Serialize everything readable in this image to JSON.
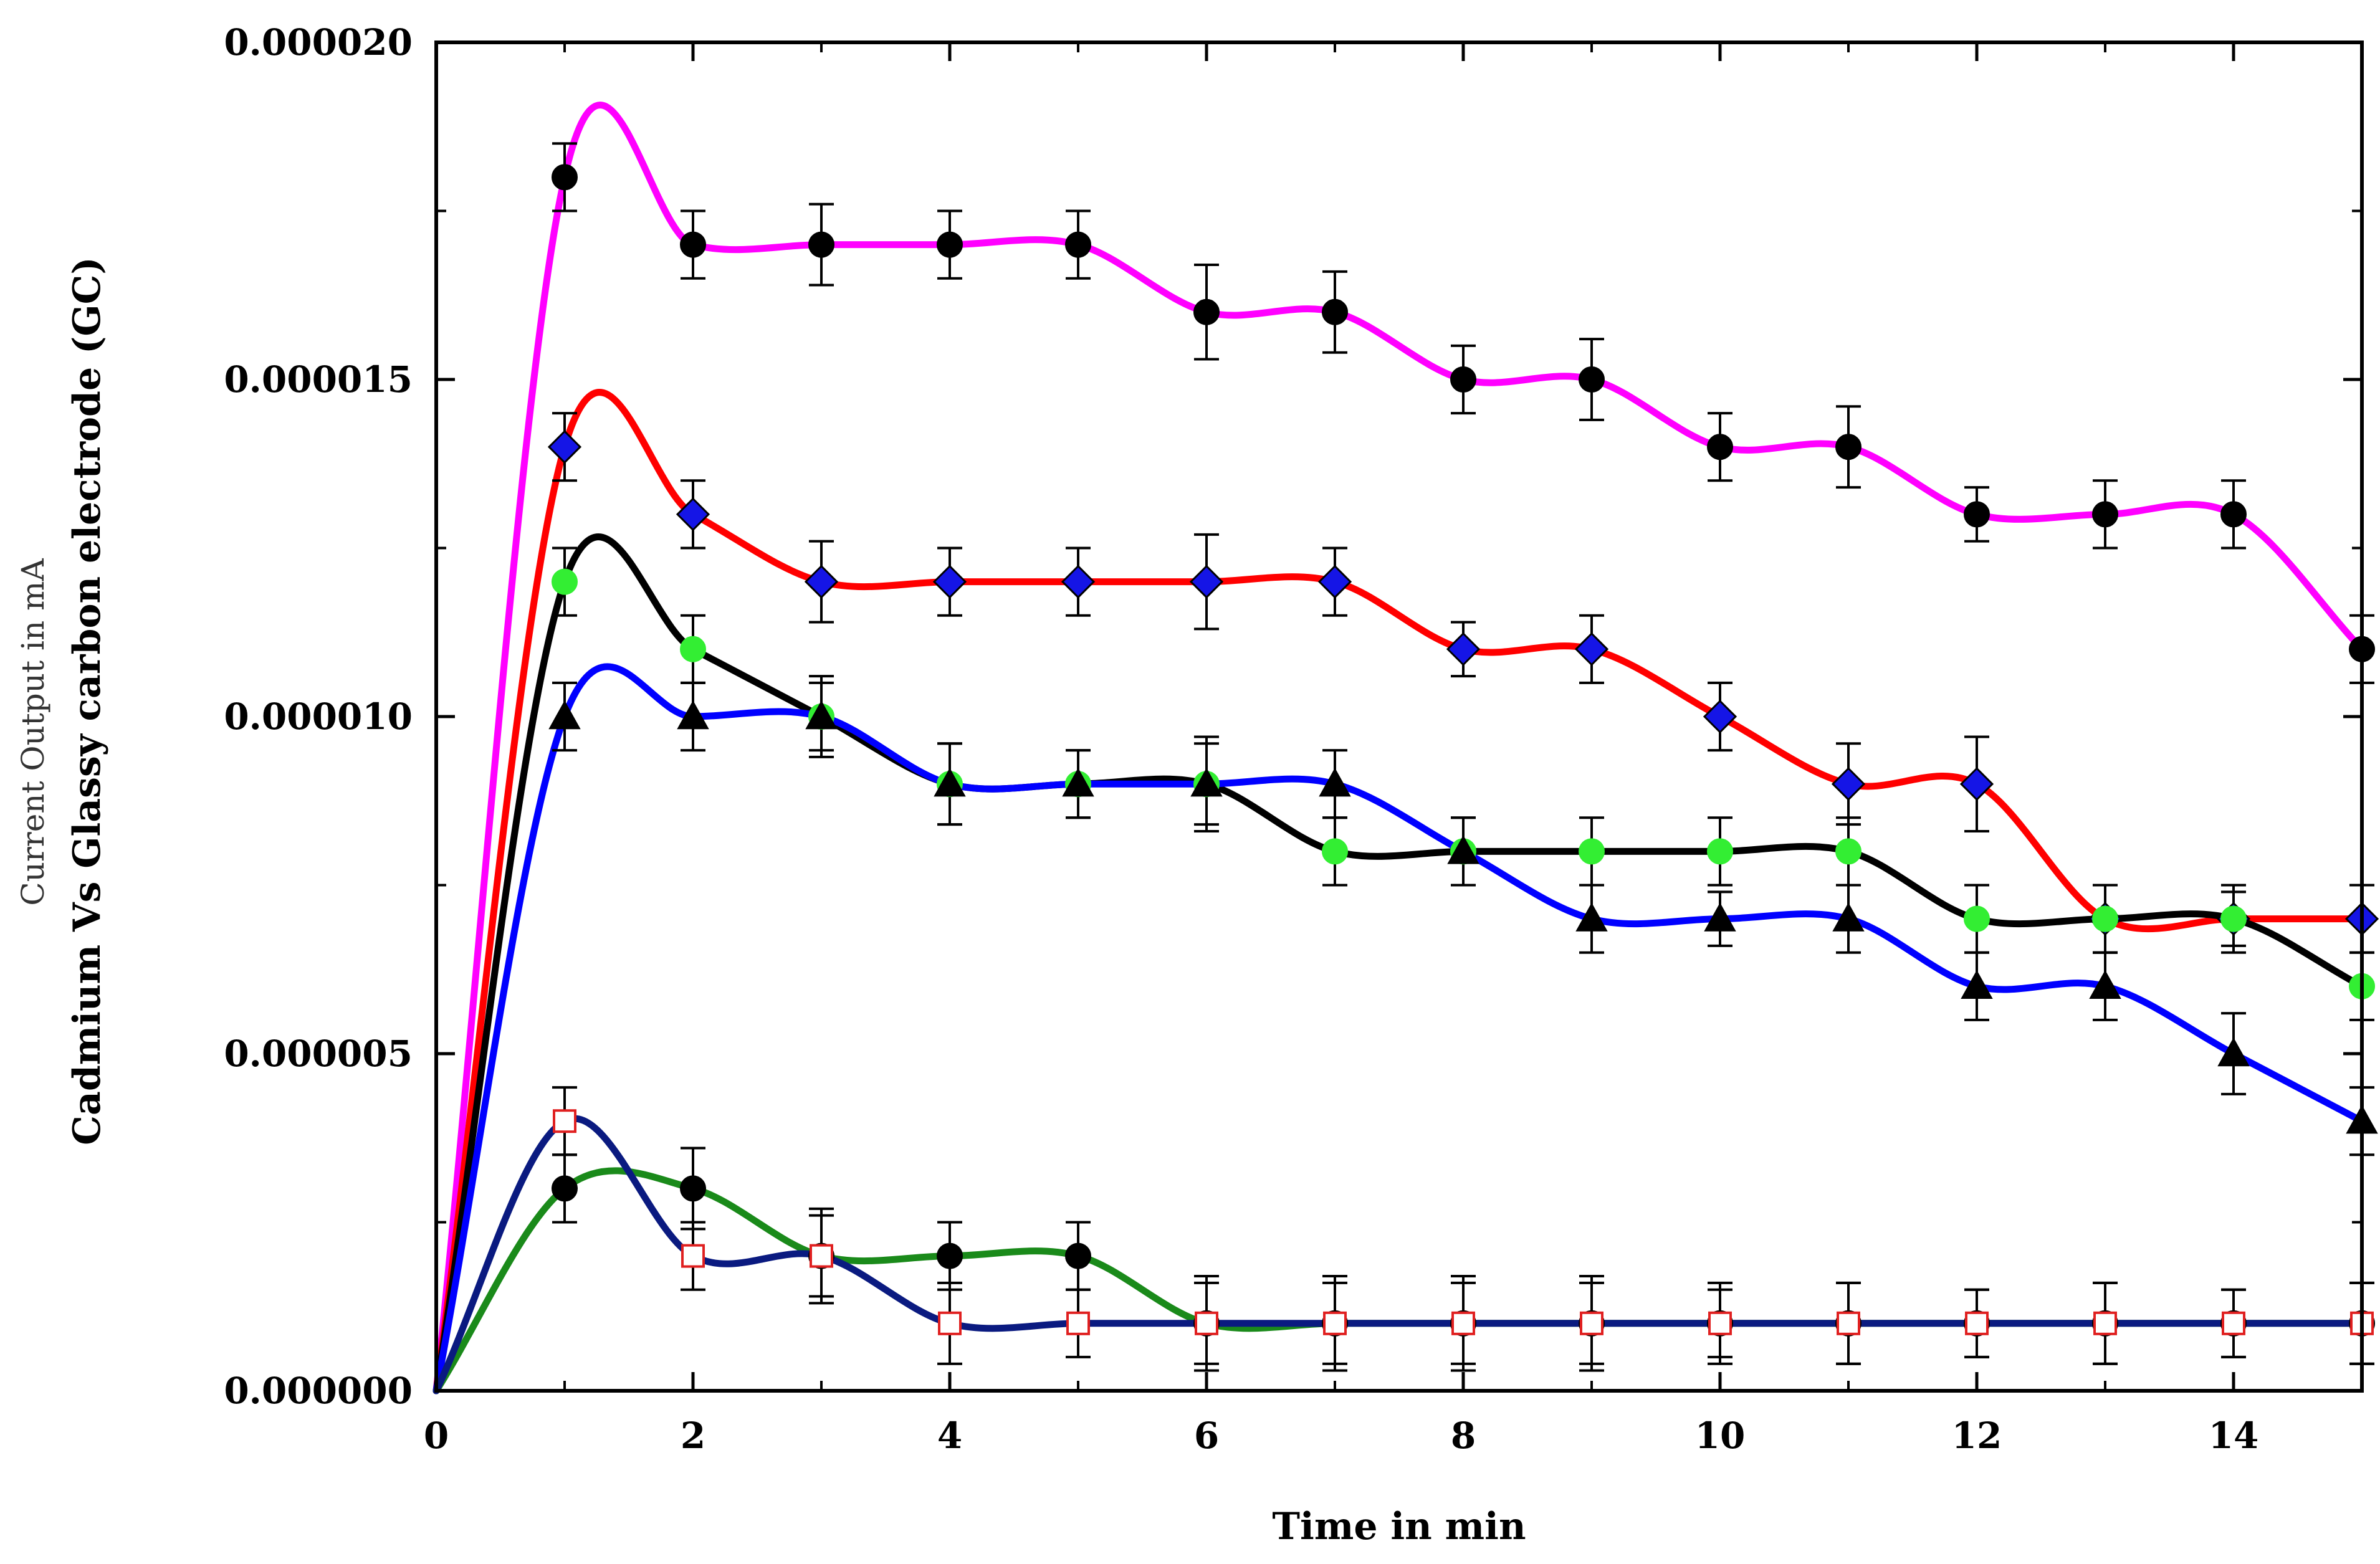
{
  "chart_data": {
    "type": "line",
    "xlabel": "Time in min",
    "ylabel_line1": "Current Output in mA",
    "ylabel_line2": "Cadmium Vs Glassy carbon electrode (GC)",
    "xlim": [
      0,
      15
    ],
    "ylim": [
      0,
      2e-05
    ],
    "x_ticks": [
      0,
      2,
      4,
      6,
      8,
      10,
      12,
      14
    ],
    "x_tick_labels": [
      "0",
      "2",
      "4",
      "6",
      "8",
      "10",
      "12",
      "14"
    ],
    "y_ticks": [
      0,
      5e-06,
      1e-05,
      1.5e-05,
      2e-05
    ],
    "y_tick_labels": [
      "0.000000",
      "0.000005",
      "0.000010",
      "0.000015",
      "0.000020"
    ],
    "grid": false,
    "legend": "none",
    "x": [
      0,
      1,
      2,
      3,
      4,
      5,
      6,
      7,
      8,
      9,
      10,
      11,
      12,
      13,
      14,
      15
    ],
    "series": [
      {
        "name": "magenta",
        "line_color": "#ff00ff",
        "marker": "circle",
        "marker_fill": "#000000",
        "marker_stroke": "#000000",
        "values": [
          0,
          1.8e-05,
          1.7e-05,
          1.7e-05,
          1.7e-05,
          1.7e-05,
          1.6e-05,
          1.6e-05,
          1.5e-05,
          1.5e-05,
          1.4e-05,
          1.4e-05,
          1.3e-05,
          1.3e-05,
          1.3e-05,
          1.1e-05
        ],
        "errors": [
          0,
          5e-07,
          5e-07,
          6e-07,
          5e-07,
          5e-07,
          7e-07,
          6e-07,
          5e-07,
          6e-07,
          5e-07,
          6e-07,
          4e-07,
          5e-07,
          5e-07,
          5e-07
        ]
      },
      {
        "name": "red",
        "line_color": "#ff0000",
        "marker": "diamond",
        "marker_fill": "#1515e6",
        "marker_stroke": "#000000",
        "values": [
          0,
          1.4e-05,
          1.3e-05,
          1.2e-05,
          1.2e-05,
          1.2e-05,
          1.2e-05,
          1.2e-05,
          1.1e-05,
          1.1e-05,
          1e-05,
          9e-06,
          9e-06,
          7e-06,
          7e-06,
          7e-06
        ],
        "errors": [
          0,
          5e-07,
          5e-07,
          6e-07,
          5e-07,
          5e-07,
          7e-07,
          5e-07,
          4e-07,
          5e-07,
          5e-07,
          6e-07,
          7e-07,
          5e-07,
          5e-07,
          5e-07
        ]
      },
      {
        "name": "black",
        "line_color": "#000000",
        "marker": "circle",
        "marker_fill": "#33ee33",
        "marker_stroke": "#33ee33",
        "values": [
          0,
          1.2e-05,
          1.1e-05,
          1e-05,
          9e-06,
          9e-06,
          9e-06,
          8e-06,
          8e-06,
          8e-06,
          8e-06,
          8e-06,
          7e-06,
          7e-06,
          7e-06,
          6e-06
        ],
        "errors": [
          0,
          5e-07,
          5e-07,
          6e-07,
          6e-07,
          5e-07,
          7e-07,
          5e-07,
          5e-07,
          5e-07,
          5e-07,
          5e-07,
          5e-07,
          5e-07,
          4e-07,
          5e-07
        ]
      },
      {
        "name": "blue",
        "line_color": "#0000ff",
        "marker": "triangle",
        "marker_fill": "#000000",
        "marker_stroke": "#000000",
        "values": [
          0,
          1e-05,
          1e-05,
          1e-05,
          9e-06,
          9e-06,
          9e-06,
          9e-06,
          8e-06,
          7e-06,
          7e-06,
          7e-06,
          6e-06,
          6e-06,
          5e-06,
          4e-06
        ],
        "errors": [
          0,
          5e-07,
          5e-07,
          5e-07,
          6e-07,
          5e-07,
          6e-07,
          5e-07,
          5e-07,
          5e-07,
          4e-07,
          5e-07,
          5e-07,
          5e-07,
          6e-07,
          5e-07
        ]
      },
      {
        "name": "green",
        "line_color": "#1a8a1a",
        "marker": "circle",
        "marker_fill": "#000000",
        "marker_stroke": "#000000",
        "values": [
          0,
          3e-06,
          3e-06,
          2e-06,
          2e-06,
          2e-06,
          1e-06,
          1e-06,
          1e-06,
          1e-06,
          1e-06,
          1e-06,
          1e-06,
          1e-06,
          1e-06,
          1e-06
        ],
        "errors": [
          0,
          5e-07,
          6e-07,
          7e-07,
          5e-07,
          5e-07,
          6e-07,
          6e-07,
          6e-07,
          6e-07,
          5e-07,
          6e-07,
          5e-07,
          6e-07,
          5e-07,
          6e-07
        ]
      },
      {
        "name": "navy",
        "line_color": "#0a1a80",
        "marker": "square",
        "marker_fill": "#ffffff",
        "marker_stroke": "#e02020",
        "values": [
          0,
          4e-06,
          2e-06,
          2e-06,
          1e-06,
          1e-06,
          1e-06,
          1e-06,
          1e-06,
          1e-06,
          1e-06,
          1e-06,
          1e-06,
          1e-06,
          1e-06,
          1e-06
        ],
        "errors": [
          0,
          5e-07,
          5e-07,
          6e-07,
          6e-07,
          5e-07,
          7e-07,
          7e-07,
          7e-07,
          7e-07,
          6e-07,
          6e-07,
          5e-07,
          6e-07,
          5e-07,
          6e-07
        ]
      }
    ]
  }
}
